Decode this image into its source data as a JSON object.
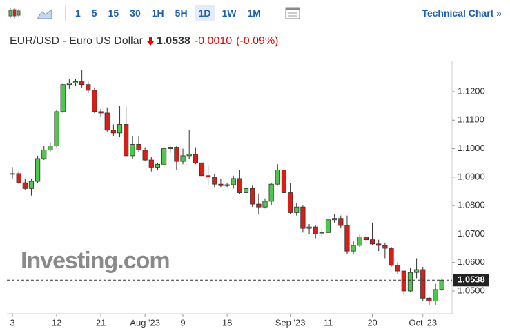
{
  "toolbar": {
    "intervals": [
      "1",
      "5",
      "15",
      "30",
      "1H",
      "5H",
      "1D",
      "1W",
      "1M"
    ],
    "active": "1D",
    "link": "Technical Chart »"
  },
  "chart_data": {
    "type": "candlestick",
    "title": "EUR/USD - Euro US Dollar",
    "last_price": 1.0538,
    "change": "-0.0010",
    "change_pct": "(-0.09%)",
    "watermark": "Investing.com",
    "up_color": "#4cc94c",
    "down_color": "#d91e18",
    "categories": [
      "3",
      null,
      null,
      null,
      null,
      null,
      null,
      "12",
      null,
      null,
      null,
      null,
      null,
      null,
      "21",
      null,
      null,
      null,
      null,
      null,
      null,
      "Aug '23",
      null,
      null,
      null,
      null,
      null,
      "9",
      null,
      null,
      null,
      null,
      null,
      null,
      "18",
      null,
      null,
      null,
      null,
      null,
      null,
      null,
      null,
      null,
      "Sep '23",
      null,
      null,
      null,
      null,
      null,
      "11",
      null,
      null,
      null,
      null,
      null,
      null,
      "20",
      null,
      null,
      null,
      null,
      null,
      null,
      null,
      "Oct '23",
      null,
      null,
      null
    ],
    "open": [
      1.091,
      1.0912,
      1.088,
      1.086,
      1.0885,
      1.0965,
      1.0995,
      1.101,
      1.113,
      1.1225,
      1.123,
      1.1235,
      1.1225,
      1.1205,
      1.113,
      1.1125,
      1.1065,
      1.1055,
      1.1085,
      1.0975,
      1.1015,
      1.0995,
      1.096,
      1.0935,
      1.0945,
      1.1,
      1.1005,
      1.0955,
      1.0975,
      1.098,
      1.095,
      1.0905,
      1.09,
      1.0875,
      1.087,
      1.0873,
      1.0895,
      1.0845,
      1.086,
      1.0805,
      1.0795,
      1.0815,
      1.0875,
      1.0925,
      1.0845,
      1.0775,
      1.0795,
      1.072,
      1.0725,
      1.07,
      1.0705,
      1.075,
      1.0755,
      1.073,
      1.064,
      1.066,
      1.069,
      1.068,
      1.0665,
      1.066,
      1.065,
      1.059,
      1.057,
      1.05,
      1.0565,
      1.0575,
      1.0475,
      1.0465,
      1.0505
    ],
    "high": [
      1.0935,
      1.092,
      1.0895,
      1.0895,
      1.0975,
      1.101,
      1.102,
      1.1135,
      1.123,
      1.1245,
      1.1245,
      1.1275,
      1.1235,
      1.1215,
      1.114,
      1.1145,
      1.1085,
      1.115,
      1.115,
      1.1045,
      1.1045,
      1.1005,
      1.097,
      1.095,
      1.101,
      1.101,
      1.101,
      1.1,
      1.1065,
      1.1005,
      1.096,
      1.094,
      1.091,
      1.0895,
      1.088,
      1.0905,
      1.0925,
      1.0875,
      1.087,
      1.084,
      1.0825,
      1.088,
      1.0945,
      1.093,
      1.088,
      1.081,
      1.08,
      1.0735,
      1.073,
      1.072,
      1.076,
      1.077,
      1.0765,
      1.0765,
      1.0675,
      1.07,
      1.07,
      1.074,
      1.068,
      1.067,
      1.0655,
      1.06,
      1.0575,
      1.058,
      1.0615,
      1.0585,
      1.048,
      1.0525,
      1.0545
    ],
    "low": [
      1.0895,
      1.0875,
      1.0855,
      1.0835,
      1.088,
      1.096,
      1.099,
      1.1005,
      1.1125,
      1.121,
      1.122,
      1.1215,
      1.1195,
      1.1125,
      1.111,
      1.106,
      1.1045,
      1.104,
      1.0975,
      1.0965,
      1.099,
      1.0955,
      1.092,
      1.0925,
      1.093,
      1.0985,
      1.0925,
      1.0945,
      1.0965,
      1.0945,
      1.0905,
      1.087,
      1.0865,
      1.0865,
      1.0865,
      1.086,
      1.084,
      1.082,
      1.0795,
      1.077,
      1.079,
      1.08,
      1.087,
      1.0835,
      1.077,
      1.0765,
      1.0705,
      1.07,
      1.0685,
      1.069,
      1.07,
      1.074,
      1.072,
      1.063,
      1.063,
      1.0655,
      1.067,
      1.066,
      1.064,
      1.0615,
      1.0585,
      1.056,
      1.0485,
      1.0495,
      1.0545,
      1.0465,
      1.045,
      1.045,
      1.05
    ],
    "close": [
      1.0912,
      1.088,
      1.086,
      1.0885,
      1.0965,
      1.0995,
      1.101,
      1.113,
      1.1225,
      1.123,
      1.1235,
      1.1225,
      1.1205,
      1.113,
      1.1125,
      1.1065,
      1.1055,
      1.1085,
      1.0975,
      1.1015,
      1.0995,
      1.096,
      1.0935,
      1.0945,
      1.1,
      1.1005,
      1.0955,
      1.0975,
      1.098,
      1.095,
      1.0905,
      1.09,
      1.0875,
      1.087,
      1.0873,
      1.0895,
      1.0845,
      1.086,
      1.0805,
      1.0795,
      1.0815,
      1.0875,
      1.0925,
      1.0845,
      1.0775,
      1.0795,
      1.072,
      1.0725,
      1.07,
      1.0705,
      1.075,
      1.0755,
      1.073,
      1.064,
      1.066,
      1.069,
      1.068,
      1.0665,
      1.066,
      1.065,
      1.059,
      1.057,
      1.05,
      1.0565,
      1.0575,
      1.0475,
      1.0465,
      1.0505,
      1.0538
    ],
    "ylim": [
      1.042,
      1.1309
    ],
    "yticks": [
      {
        "value": 1.05,
        "label": "1.0500"
      },
      {
        "value": 1.06,
        "label": "1.0600"
      },
      {
        "value": 1.07,
        "label": "1.0700"
      },
      {
        "value": 1.08,
        "label": "1.0800"
      },
      {
        "value": 1.09,
        "label": "1.0900"
      },
      {
        "value": 1.1,
        "label": "1.1000"
      },
      {
        "value": 1.11,
        "label": "1.1100"
      },
      {
        "value": 1.12,
        "label": "1.1200"
      }
    ]
  }
}
